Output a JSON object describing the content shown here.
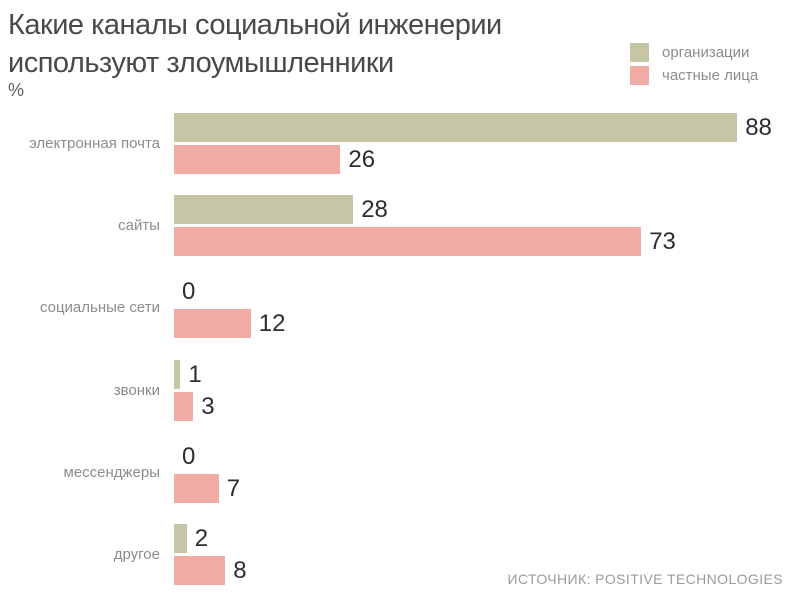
{
  "title": {
    "line1": "Какие каналы социальной инженерии",
    "line2": "используют злоумышленники",
    "full": "Какие каналы социальной инженерии используют злоумышленники"
  },
  "unit_label": "%",
  "legend": [
    {
      "label": "организации",
      "color": "#c6c6a6"
    },
    {
      "label": "частные лица",
      "color": "#f0aba4"
    }
  ],
  "chart_data": {
    "type": "bar",
    "orientation": "horizontal",
    "title": "Какие каналы социальной инженерии используют злоумышленники",
    "unit": "%",
    "categories": [
      "электронная почта",
      "сайты",
      "социальные сети",
      "звонки",
      "мессенджеры",
      "другое"
    ],
    "series": [
      {
        "name": "организации",
        "color": "#c6c6a6",
        "values": [
          88,
          28,
          0,
          1,
          0,
          2
        ]
      },
      {
        "name": "частные лица",
        "color": "#f0aba4",
        "values": [
          26,
          73,
          12,
          3,
          7,
          8
        ]
      }
    ],
    "xlim": [
      0,
      94
    ],
    "value_labels": true,
    "grid": false,
    "legend_position": "top-right"
  },
  "source": "ИСТОЧНИК: POSITIVE TECHNOLOGIES"
}
